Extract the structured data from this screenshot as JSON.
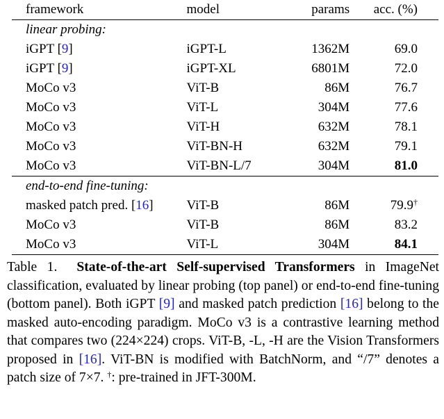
{
  "table": {
    "headers": {
      "framework": "framework",
      "model": "model",
      "params": "params",
      "acc": "acc. (%)"
    },
    "panels": [
      {
        "title": "linear probing:",
        "rows": [
          {
            "framework": "iGPT",
            "cite": "9",
            "model": "iGPT-L",
            "params": "1362M",
            "acc": "69.0",
            "bold": false,
            "dagger": false
          },
          {
            "framework": "iGPT",
            "cite": "9",
            "model": "iGPT-XL",
            "params": "6801M",
            "acc": "72.0",
            "bold": false,
            "dagger": false
          },
          {
            "framework": "MoCo v3",
            "cite": "",
            "model": "ViT-B",
            "params": "86M",
            "acc": "76.7",
            "bold": false,
            "dagger": false
          },
          {
            "framework": "MoCo v3",
            "cite": "",
            "model": "ViT-L",
            "params": "304M",
            "acc": "77.6",
            "bold": false,
            "dagger": false
          },
          {
            "framework": "MoCo v3",
            "cite": "",
            "model": "ViT-H",
            "params": "632M",
            "acc": "78.1",
            "bold": false,
            "dagger": false
          },
          {
            "framework": "MoCo v3",
            "cite": "",
            "model": "ViT-BN-H",
            "params": "632M",
            "acc": "79.1",
            "bold": false,
            "dagger": false
          },
          {
            "framework": "MoCo v3",
            "cite": "",
            "model": "ViT-BN-L/7",
            "params": "304M",
            "acc": "81.0",
            "bold": true,
            "dagger": false
          }
        ]
      },
      {
        "title": "end-to-end fine-tuning:",
        "rows": [
          {
            "framework": "masked patch pred.",
            "cite": "16",
            "model": "ViT-B",
            "params": "86M",
            "acc": "79.9",
            "bold": false,
            "dagger": true
          },
          {
            "framework": "MoCo v3",
            "cite": "",
            "model": "ViT-B",
            "params": "86M",
            "acc": "83.2",
            "bold": false,
            "dagger": false
          },
          {
            "framework": "MoCo v3",
            "cite": "",
            "model": "ViT-L",
            "params": "304M",
            "acc": "84.1",
            "bold": true,
            "dagger": false
          }
        ]
      }
    ],
    "dagger_symbol": "†"
  },
  "caption": {
    "label": "Table 1.",
    "lead": "State-of-the-art Self-supervised Transformers",
    "t1": " in ImageNet classification, evaluated by linear probing (top panel) or end-to-end fine-tuning (bottom panel).  Both iGPT ",
    "c1": "[9]",
    "t2": " and masked patch prediction ",
    "c2": "[16]",
    "t3": " belong to the masked auto-encoding paradigm.  MoCo v3 is a contrastive learning method that compares two (224×224) crops.  ViT-B, -L, -H are the Vision Transformers proposed in ",
    "c3": "[16]",
    "t4": ".  ViT-BN is modified with BatchNorm, and “/7” denotes a patch size of 7×7.  ",
    "dagger": "†",
    "t5": ": pre-trained in JFT-300M."
  }
}
